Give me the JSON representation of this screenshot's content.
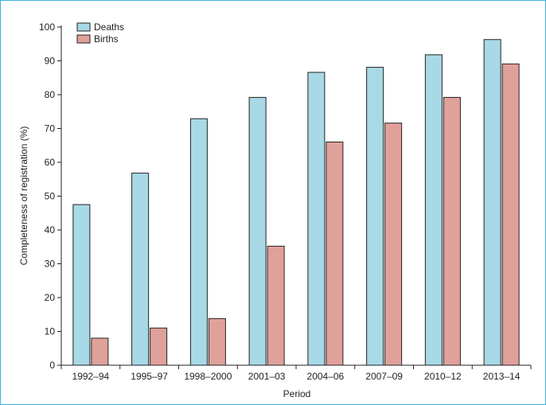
{
  "chart_data": {
    "type": "bar",
    "title": "",
    "xlabel": "Period",
    "ylabel": "Completeness of registration (%)",
    "ylim": [
      0,
      100
    ],
    "yticks": [
      0,
      10,
      20,
      30,
      40,
      50,
      60,
      70,
      80,
      90,
      100
    ],
    "grid": false,
    "legend_position": "top-left",
    "categories": [
      "1992–94",
      "1995–97",
      "1998–2000",
      "2001–03",
      "2004–06",
      "2007–09",
      "2010–12",
      "2013–14"
    ],
    "series": [
      {
        "name": "Deaths",
        "color": "#a8d9e6",
        "values": [
          47.5,
          56.8,
          72.9,
          79.2,
          86.6,
          88.1,
          91.8,
          96.3
        ]
      },
      {
        "name": "Births",
        "color": "#dfa19a",
        "values": [
          8.0,
          11.0,
          13.8,
          35.2,
          66.0,
          71.6,
          79.2,
          89.1
        ]
      }
    ]
  }
}
